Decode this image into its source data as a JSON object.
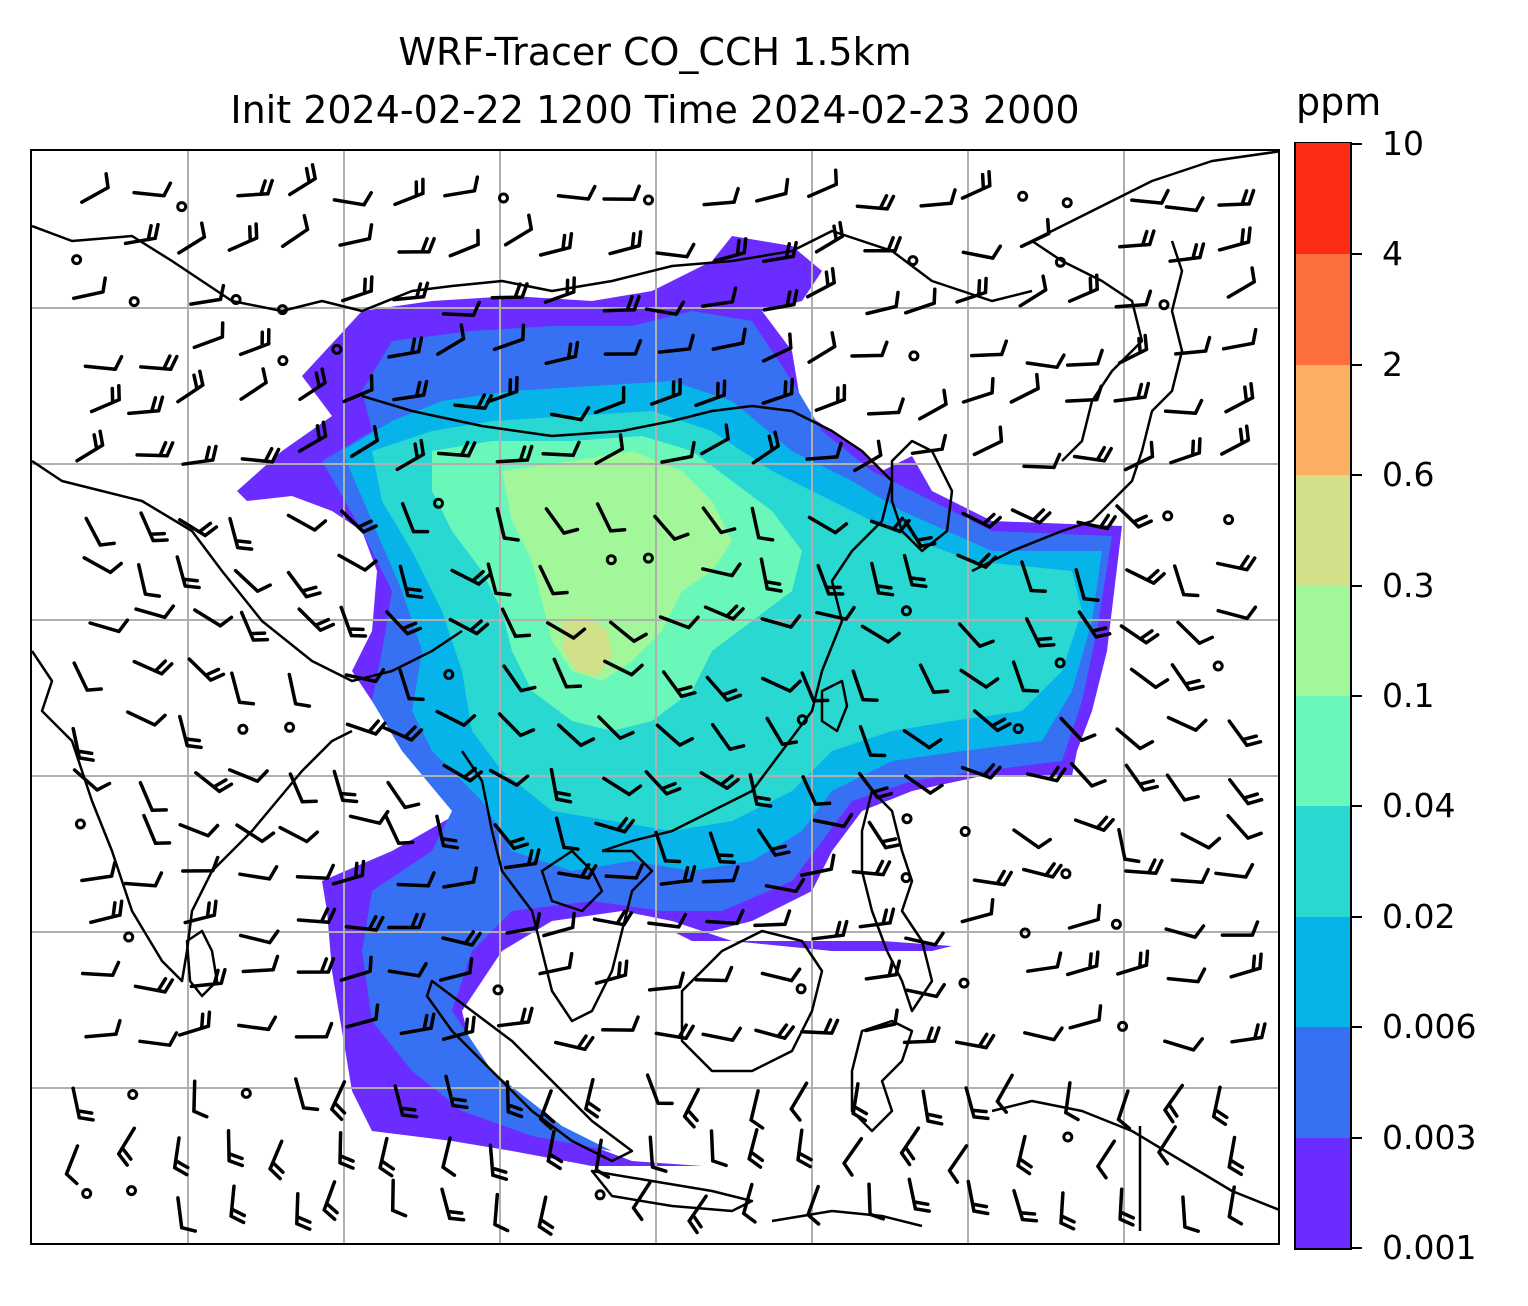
{
  "title": {
    "line1": "WRF-Tracer CO_CCH 1.5km",
    "line2": "Init 2024-02-22 1200 Time 2024-02-23 2000"
  },
  "colorbar": {
    "unit": "ppm",
    "tick_labels": [
      "0.001",
      "0.003",
      "0.006",
      "0.02",
      "0.04",
      "0.1",
      "0.3",
      "0.6",
      "2",
      "4",
      "10"
    ],
    "colors": [
      "#6a2cff",
      "#3571f2",
      "#07b4ea",
      "#2ad8d2",
      "#69f8ba",
      "#a1f79a",
      "#d3e08a",
      "#fcae62",
      "#fd6f3f",
      "#fe2b16"
    ]
  },
  "map": {
    "gridlines": true,
    "grid_color": "#b0b0b0",
    "coastline_color": "#000000",
    "wind_symbol": "barbs",
    "plume_levels": {
      "outer": "0.001-0.003",
      "mid": "0.003-0.006",
      "inner": "0.006-0.02",
      "core": "0.02-0.04",
      "peak": "0.04-0.1",
      "max": "0.1-0.3",
      "hot": "0.3-0.6"
    }
  }
}
